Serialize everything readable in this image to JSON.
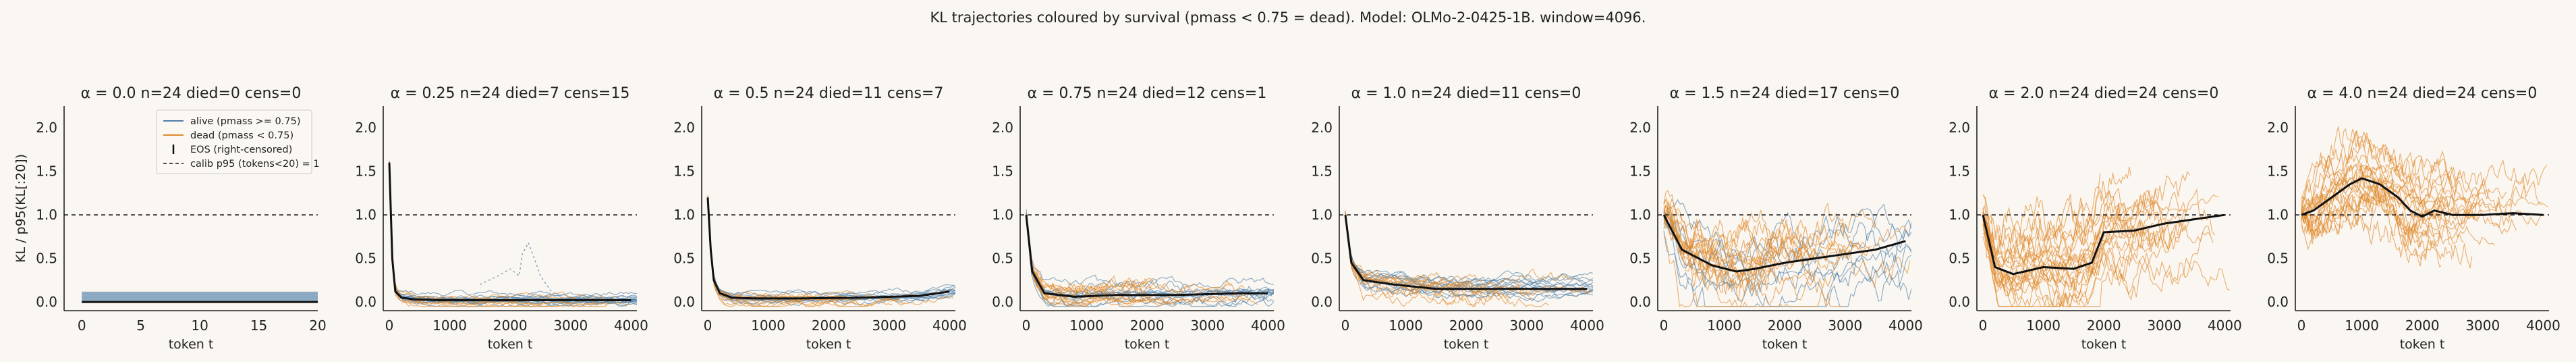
{
  "suptitle": "KL trajectories coloured by survival (pmass < 0.75 = dead). Model: OLMo-2-0425-1B. window=4096.",
  "colors": {
    "alive": "#4f7fa8",
    "dead": "#e0882a",
    "median": "#111111",
    "background": "#faf6f1"
  },
  "chart_data": [
    {
      "type": "line",
      "title": "α = 0.0  n=24  died=0  cens=0",
      "xlabel": "token t",
      "ylabel": "KL / p95(KL[:20])",
      "xlim": [
        -1.5,
        20
      ],
      "ylim": [
        -0.1,
        2.25
      ],
      "xticks": [
        0,
        5,
        10,
        15,
        20
      ],
      "yticks": [
        0.0,
        0.5,
        1.0,
        1.5,
        2.0
      ],
      "calib_line": 1.0,
      "alive_count": 24,
      "dead_count": 0,
      "median": {
        "x": [
          0,
          20
        ],
        "y": [
          0.0,
          0.0
        ]
      },
      "legend": {
        "position": "top-right",
        "entries": [
          "alive (pmass >= 0.75)",
          "dead (pmass < 0.75)",
          "EOS (right-censored)",
          "calib p95 (tokens<20) = 1"
        ]
      }
    },
    {
      "type": "line",
      "title": "α = 0.25  n=24  died=7  cens=15",
      "xlabel": "token t",
      "xlim": [
        -100,
        4096
      ],
      "ylim": [
        -0.1,
        2.25
      ],
      "xticks": [
        0,
        1000,
        2000,
        3000,
        4000
      ],
      "yticks": [
        0.0,
        0.5,
        1.0,
        1.5,
        2.0
      ],
      "calib_line": 1.0,
      "alive_count": 17,
      "dead_count": 7,
      "median": {
        "x": [
          0,
          50,
          100,
          200,
          400,
          800,
          1500,
          2500,
          4000
        ],
        "y": [
          1.6,
          0.5,
          0.12,
          0.05,
          0.03,
          0.02,
          0.02,
          0.02,
          0.02
        ]
      },
      "annotation_series": {
        "x": [
          1500,
          1800,
          2000,
          2150,
          2200,
          2300,
          2400,
          2500,
          2600,
          2700
        ],
        "y": [
          0.2,
          0.3,
          0.38,
          0.3,
          0.55,
          0.68,
          0.5,
          0.3,
          0.2,
          0.1
        ]
      }
    },
    {
      "type": "line",
      "title": "α = 0.5  n=24  died=11  cens=7",
      "xlabel": "token t",
      "xlim": [
        -100,
        4096
      ],
      "ylim": [
        -0.1,
        2.25
      ],
      "xticks": [
        0,
        1000,
        2000,
        3000,
        4000
      ],
      "yticks": [
        0.0,
        0.5,
        1.0,
        1.5,
        2.0
      ],
      "calib_line": 1.0,
      "alive_count": 13,
      "dead_count": 11,
      "median": {
        "x": [
          0,
          50,
          100,
          200,
          400,
          800,
          1500,
          2500,
          3500,
          4000
        ],
        "y": [
          1.2,
          0.6,
          0.25,
          0.1,
          0.05,
          0.04,
          0.04,
          0.05,
          0.07,
          0.12
        ]
      }
    },
    {
      "type": "line",
      "title": "α = 0.75  n=24  died=12  cens=1",
      "xlabel": "token t",
      "xlim": [
        -100,
        4096
      ],
      "ylim": [
        -0.1,
        2.25
      ],
      "xticks": [
        0,
        1000,
        2000,
        3000,
        4000
      ],
      "yticks": [
        0.0,
        0.5,
        1.0,
        1.5,
        2.0
      ],
      "calib_line": 1.0,
      "alive_count": 12,
      "dead_count": 12,
      "median": {
        "x": [
          0,
          100,
          300,
          800,
          1500,
          2500,
          3500,
          4000
        ],
        "y": [
          1.0,
          0.35,
          0.1,
          0.06,
          0.08,
          0.08,
          0.1,
          0.1
        ]
      }
    },
    {
      "type": "line",
      "title": "α = 1.0  n=24  died=11  cens=0",
      "xlabel": "token t",
      "xlim": [
        -100,
        4096
      ],
      "ylim": [
        -0.1,
        2.25
      ],
      "xticks": [
        0,
        1000,
        2000,
        3000,
        4000
      ],
      "yticks": [
        0.0,
        0.5,
        1.0,
        1.5,
        2.0
      ],
      "calib_line": 1.0,
      "alive_count": 13,
      "dead_count": 11,
      "median": {
        "x": [
          0,
          100,
          300,
          800,
          1500,
          2500,
          3500,
          4000
        ],
        "y": [
          1.0,
          0.45,
          0.25,
          0.2,
          0.15,
          0.15,
          0.15,
          0.15
        ]
      }
    },
    {
      "type": "line",
      "title": "α = 1.5  n=24  died=17  cens=0",
      "xlabel": "token t",
      "xlim": [
        -100,
        4096
      ],
      "ylim": [
        -0.1,
        2.25
      ],
      "xticks": [
        0,
        1000,
        2000,
        3000,
        4000
      ],
      "yticks": [
        0.0,
        0.5,
        1.0,
        1.5,
        2.0
      ],
      "calib_line": 1.0,
      "alive_count": 7,
      "dead_count": 17,
      "median": {
        "x": [
          0,
          300,
          800,
          1200,
          1500,
          2000,
          2500,
          3000,
          3500,
          4000
        ],
        "y": [
          1.0,
          0.6,
          0.42,
          0.35,
          0.38,
          0.45,
          0.5,
          0.55,
          0.6,
          0.7
        ]
      }
    },
    {
      "type": "line",
      "title": "α = 2.0  n=24  died=24  cens=0",
      "xlabel": "token t",
      "xlim": [
        -100,
        4096
      ],
      "ylim": [
        -0.1,
        2.25
      ],
      "xticks": [
        0,
        1000,
        2000,
        3000,
        4000
      ],
      "yticks": [
        0.0,
        0.5,
        1.0,
        1.5,
        2.0
      ],
      "calib_line": 1.0,
      "alive_count": 0,
      "dead_count": 24,
      "median": {
        "x": [
          0,
          200,
          500,
          1000,
          1500,
          1800,
          2000,
          2500,
          3000,
          3500,
          4000
        ],
        "y": [
          1.0,
          0.4,
          0.32,
          0.4,
          0.38,
          0.45,
          0.8,
          0.82,
          0.9,
          0.95,
          1.0
        ]
      }
    },
    {
      "type": "line",
      "title": "α = 4.0  n=24  died=24  cens=0",
      "xlabel": "token t",
      "xlim": [
        -100,
        4096
      ],
      "ylim": [
        -0.1,
        2.25
      ],
      "xticks": [
        0,
        1000,
        2000,
        3000,
        4000
      ],
      "yticks": [
        0.0,
        0.5,
        1.0,
        1.5,
        2.0
      ],
      "calib_line": 1.0,
      "alive_count": 0,
      "dead_count": 24,
      "median": {
        "x": [
          0,
          200,
          500,
          800,
          1000,
          1300,
          1600,
          1800,
          2000,
          2200,
          2500,
          3000,
          3500,
          4000
        ],
        "y": [
          1.0,
          1.05,
          1.2,
          1.35,
          1.42,
          1.35,
          1.2,
          1.05,
          0.98,
          1.05,
          1.0,
          1.0,
          1.02,
          1.0
        ]
      }
    }
  ]
}
